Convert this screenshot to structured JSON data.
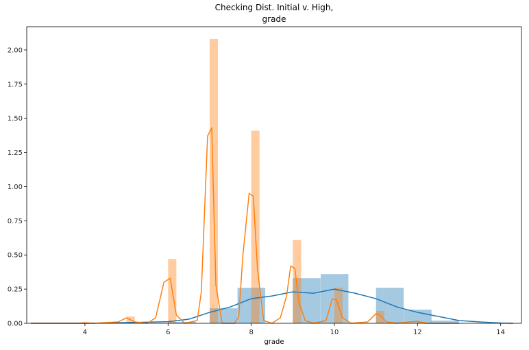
{
  "chart_data": {
    "type": "bar",
    "title_lines": [
      "Checking Dist. Initial v. High,",
      "grade"
    ],
    "xlabel": "grade",
    "ylabel": "",
    "xlim": [
      2.6,
      14.5
    ],
    "ylim": [
      0,
      2.17
    ],
    "xticks": [
      4,
      6,
      8,
      10,
      12,
      14
    ],
    "yticks": [
      0.0,
      0.25,
      0.5,
      0.75,
      1.0,
      1.25,
      1.5,
      1.75,
      2.0
    ],
    "grid": false,
    "legend": "none",
    "series": [
      {
        "color": "#1f77b4",
        "hist_bin_width": 0.667,
        "hist": [
          {
            "x0": 6.0,
            "y": 0.01
          },
          {
            "x0": 7.0,
            "y": 0.11
          },
          {
            "x0": 7.67,
            "y": 0.26
          },
          {
            "x0": 9.0,
            "y": 0.33
          },
          {
            "x0": 9.67,
            "y": 0.36
          },
          {
            "x0": 11.0,
            "y": 0.26
          },
          {
            "x0": 11.67,
            "y": 0.1
          },
          {
            "x0": 12.33,
            "y": 0.02
          }
        ],
        "kde": [
          [
            2.7,
            0.0
          ],
          [
            4.0,
            0.0
          ],
          [
            5.0,
            0.005
          ],
          [
            5.5,
            0.008
          ],
          [
            6.0,
            0.012
          ],
          [
            6.5,
            0.03
          ],
          [
            7.0,
            0.08
          ],
          [
            7.5,
            0.12
          ],
          [
            8.0,
            0.18
          ],
          [
            8.5,
            0.2
          ],
          [
            9.0,
            0.23
          ],
          [
            9.5,
            0.22
          ],
          [
            10.0,
            0.25
          ],
          [
            10.5,
            0.22
          ],
          [
            11.0,
            0.18
          ],
          [
            11.5,
            0.12
          ],
          [
            12.0,
            0.08
          ],
          [
            12.5,
            0.05
          ],
          [
            13.0,
            0.02
          ],
          [
            13.5,
            0.01
          ],
          [
            14.0,
            0.002
          ],
          [
            14.3,
            0.0
          ]
        ]
      },
      {
        "color": "#ff7f0e",
        "hist_bin_width": 0.2,
        "hist": [
          {
            "x0": 5.0,
            "y": 0.05
          },
          {
            "x0": 6.0,
            "y": 0.47
          },
          {
            "x0": 7.0,
            "y": 2.08
          },
          {
            "x0": 8.0,
            "y": 1.41
          },
          {
            "x0": 9.0,
            "y": 0.61
          },
          {
            "x0": 10.0,
            "y": 0.26
          },
          {
            "x0": 11.0,
            "y": 0.09
          },
          {
            "x0": 12.0,
            "y": 0.01
          }
        ],
        "kde": [
          [
            2.7,
            0.0
          ],
          [
            3.8,
            0.0
          ],
          [
            4.0,
            0.004
          ],
          [
            4.2,
            0.0
          ],
          [
            4.8,
            0.01
          ],
          [
            5.0,
            0.04
          ],
          [
            5.2,
            0.01
          ],
          [
            5.5,
            0.0
          ],
          [
            5.7,
            0.04
          ],
          [
            5.9,
            0.3
          ],
          [
            6.05,
            0.33
          ],
          [
            6.2,
            0.06
          ],
          [
            6.4,
            0.0
          ],
          [
            6.7,
            0.02
          ],
          [
            6.8,
            0.23
          ],
          [
            6.95,
            1.37
          ],
          [
            7.05,
            1.43
          ],
          [
            7.15,
            0.28
          ],
          [
            7.3,
            0.0
          ],
          [
            7.6,
            0.0
          ],
          [
            7.7,
            0.05
          ],
          [
            7.8,
            0.5
          ],
          [
            7.95,
            0.95
          ],
          [
            8.05,
            0.93
          ],
          [
            8.15,
            0.4
          ],
          [
            8.3,
            0.02
          ],
          [
            8.5,
            0.0
          ],
          [
            8.7,
            0.04
          ],
          [
            8.85,
            0.2
          ],
          [
            8.95,
            0.42
          ],
          [
            9.05,
            0.4
          ],
          [
            9.15,
            0.15
          ],
          [
            9.3,
            0.02
          ],
          [
            9.5,
            0.0
          ],
          [
            9.8,
            0.02
          ],
          [
            9.95,
            0.18
          ],
          [
            10.05,
            0.17
          ],
          [
            10.2,
            0.04
          ],
          [
            10.4,
            0.0
          ],
          [
            10.8,
            0.01
          ],
          [
            11.0,
            0.07
          ],
          [
            11.1,
            0.06
          ],
          [
            11.25,
            0.01
          ],
          [
            11.5,
            0.0
          ],
          [
            11.8,
            0.01
          ],
          [
            12.0,
            0.015
          ],
          [
            12.2,
            0.0
          ],
          [
            13.0,
            0.0
          ]
        ]
      }
    ]
  }
}
